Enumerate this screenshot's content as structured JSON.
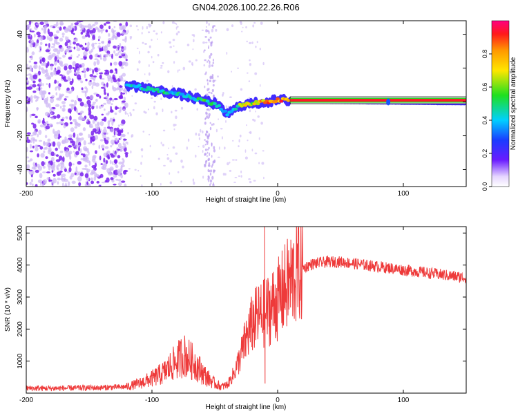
{
  "figure_title": "GN04.2026.100.22.26.R06",
  "chart_data": [
    {
      "type": "heatmap",
      "title": "",
      "xlabel": "Height of straight line (km)",
      "ylabel": "Frequency (Hz)",
      "xlim": [
        -200,
        150
      ],
      "ylim": [
        -50,
        48
      ],
      "x_ticks": [
        -200,
        -100,
        0,
        100
      ],
      "y_ticks": [
        -40,
        -20,
        0,
        20,
        40
      ],
      "colorbar": {
        "label": "Normalized spectral amplitude",
        "range": [
          0,
          1
        ],
        "ticks": [
          "0.0",
          "0.2",
          "0.4",
          "0.6",
          "0.8"
        ]
      },
      "ridge": [
        {
          "x": -120,
          "y": 10,
          "amp": 0.45
        },
        {
          "x": -110,
          "y": 9,
          "amp": 0.5
        },
        {
          "x": -100,
          "y": 7,
          "amp": 0.55
        },
        {
          "x": -90,
          "y": 6,
          "amp": 0.5
        },
        {
          "x": -80,
          "y": 5,
          "amp": 0.45
        },
        {
          "x": -70,
          "y": 3,
          "amp": 0.5
        },
        {
          "x": -60,
          "y": 1,
          "amp": 0.55
        },
        {
          "x": -50,
          "y": -1,
          "amp": 0.5
        },
        {
          "x": -45,
          "y": -4,
          "amp": 0.4
        },
        {
          "x": -40,
          "y": -7,
          "amp": 0.45
        },
        {
          "x": -35,
          "y": -5,
          "amp": 0.55
        },
        {
          "x": -30,
          "y": -2,
          "amp": 0.65
        },
        {
          "x": -20,
          "y": -1,
          "amp": 0.75
        },
        {
          "x": -10,
          "y": 0,
          "amp": 0.85
        },
        {
          "x": 0,
          "y": 1,
          "amp": 0.9
        },
        {
          "x": 10,
          "y": 1,
          "amp": 0.95
        },
        {
          "x": 150,
          "y": 0,
          "amp": 0.95
        }
      ]
    },
    {
      "type": "line",
      "title": "",
      "xlabel": "Height of straight line (km)",
      "ylabel": "SNR (10 * v/v)",
      "xlim": [
        -200,
        150
      ],
      "ylim": [
        0,
        5200
      ],
      "x_ticks": [
        -200,
        -100,
        0,
        100
      ],
      "y_ticks": [
        1000,
        2000,
        3000,
        4000,
        5000
      ],
      "series": [
        {
          "color": "#ee3a3a",
          "x": [
            -200,
            -180,
            -160,
            -140,
            -120,
            -110,
            -100,
            -90,
            -85,
            -80,
            -75,
            -70,
            -65,
            -60,
            -55,
            -50,
            -45,
            -40,
            -35,
            -30,
            -25,
            -20,
            -15,
            -10,
            -5,
            0,
            5,
            10,
            15,
            20,
            25,
            30,
            40,
            50,
            60,
            70,
            80,
            90,
            100,
            110,
            120,
            130,
            140,
            150
          ],
          "y": [
            150,
            150,
            160,
            170,
            200,
            300,
            450,
            650,
            850,
            1000,
            1200,
            1050,
            900,
            650,
            450,
            300,
            200,
            250,
            600,
            1100,
            1700,
            2200,
            2400,
            2500,
            2700,
            2900,
            3200,
            3500,
            3750,
            3900,
            4000,
            4050,
            4100,
            4100,
            4050,
            4000,
            3950,
            3900,
            3850,
            3800,
            3750,
            3700,
            3650,
            3600
          ]
        }
      ]
    }
  ]
}
